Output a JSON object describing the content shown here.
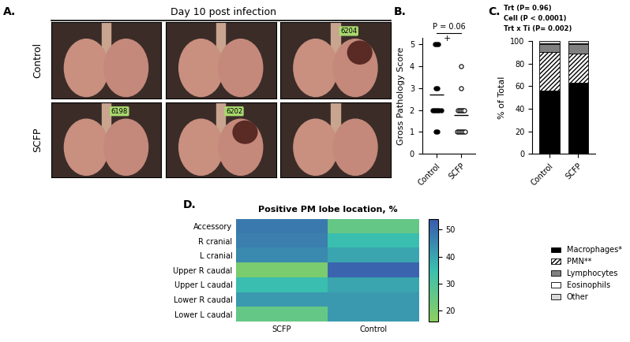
{
  "chart_data": [
    {
      "type": "photo_grid",
      "panel_label": "A.",
      "title": "Day 10 post infection",
      "rows": [
        "Control",
        "SCFP"
      ],
      "tags": [
        [
          null,
          null,
          "6204"
        ],
        [
          "6198",
          "6202",
          null
        ]
      ]
    },
    {
      "type": "scatter",
      "panel_label": "B.",
      "categories": [
        "Control",
        "SCFP"
      ],
      "ylabel": "Gross Pathology Score",
      "ylim": [
        0,
        5.3
      ],
      "yticks": [
        0,
        1,
        2,
        3,
        4,
        5
      ],
      "values": [
        [
          5,
          5,
          5,
          3,
          3,
          2,
          2,
          2,
          2,
          2,
          2,
          1,
          1
        ],
        [
          4,
          3,
          2,
          2,
          2,
          2,
          2,
          1,
          1,
          1,
          1,
          1,
          1
        ]
      ],
      "means": [
        2.69,
        1.77
      ],
      "colors": [
        "#000000",
        "#ffffff"
      ],
      "marker": "o",
      "annotations": [
        {
          "text": "P = 0.06"
        },
        {
          "text": "+",
          "category": "Control",
          "y": 5
        }
      ]
    },
    {
      "type": "bar",
      "stacked": true,
      "panel_label": "C.",
      "categories": [
        "Control",
        "SCFP"
      ],
      "ylabel": "% of Total",
      "ylim": [
        0,
        100
      ],
      "yticks": [
        0,
        20,
        40,
        60,
        80,
        100
      ],
      "series": [
        {
          "name": "Macrophages*",
          "color": "#000000",
          "values": [
            56,
            63
          ]
        },
        {
          "name": "PMN**",
          "color": "#ffffff",
          "values": [
            34,
            26
          ]
        },
        {
          "name": "Lymphocytes",
          "color": "#808080",
          "values": [
            7,
            8
          ]
        },
        {
          "name": "Eosinophils",
          "color": "#ffffff",
          "values": [
            1,
            1
          ]
        },
        {
          "name": "Other",
          "color": "#d9d9d9",
          "values": [
            2,
            2
          ]
        }
      ],
      "legend": "lower right",
      "annotations": [
        "Trt (P= 0.96)",
        "Cell (P < 0.0001)",
        "Trt x Ti (P= 0.002)"
      ]
    },
    {
      "type": "heatmap",
      "panel_label": "D.",
      "title": "Positive PM lobe location, %",
      "rows": [
        "Accessory",
        "R cranial",
        "L cranial",
        "Upper R caudal",
        "Upper L caudal",
        "Lower R caudal",
        "Lower L caudal"
      ],
      "columns": [
        "SCFP",
        "Control"
      ],
      "cells": [
        [
          48,
          25
        ],
        [
          47,
          35
        ],
        [
          45,
          40
        ],
        [
          20,
          52
        ],
        [
          35,
          40
        ],
        [
          42,
          42
        ],
        [
          25,
          42
        ]
      ],
      "crange": [
        16,
        54
      ],
      "cticks": [
        20,
        30,
        40,
        50
      ]
    }
  ]
}
